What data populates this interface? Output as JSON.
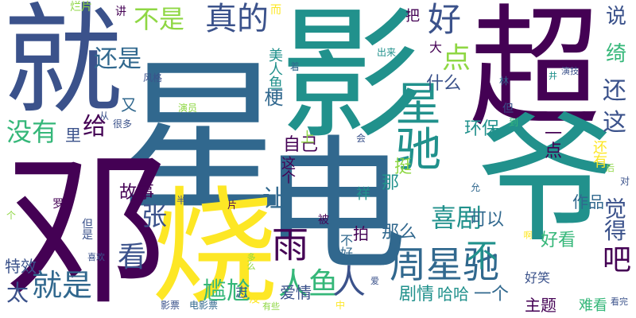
{
  "palette": {
    "dark_purple": "#440154",
    "indigo": "#3b528b",
    "blue": "#31688e",
    "teal": "#21918c",
    "green": "#35b779",
    "light_green": "#8fd744",
    "yellow": "#fde725"
  },
  "words": [
    {
      "text": "星",
      "color": "#31688e"
    },
    {
      "text": "邓",
      "color": "#440154"
    },
    {
      "text": "就",
      "color": "#3b528b"
    },
    {
      "text": "影",
      "color": "#21918c"
    },
    {
      "text": "超",
      "color": "#440154"
    },
    {
      "text": "爷",
      "color": "#21918c"
    },
    {
      "text": "电",
      "color": "#31688e"
    },
    {
      "text": "烧",
      "color": "#fde725"
    },
    {
      "text": "星驰",
      "color": "#21918c"
    },
    {
      "text": "周星驰",
      "color": "#31688e"
    },
    {
      "text": "雨",
      "color": "#440154"
    },
    {
      "text": "真的",
      "color": "#3b528b"
    },
    {
      "text": "好",
      "color": "#3b528b"
    },
    {
      "text": "不是",
      "color": "#8fd744"
    },
    {
      "text": "还是",
      "color": "#31688e"
    },
    {
      "text": "点",
      "color": "#8fd744"
    },
    {
      "text": "就是",
      "color": "#31688e"
    },
    {
      "text": "喜剧",
      "color": "#21918c"
    },
    {
      "text": "人鱼",
      "color": "#35b779"
    },
    {
      "text": "不",
      "color": "#21918c"
    },
    {
      "text": "人",
      "color": "#3b528b"
    },
    {
      "text": "吧",
      "color": "#440154"
    },
    {
      "text": "看",
      "color": "#3b528b"
    },
    {
      "text": "没有",
      "color": "#35b779"
    },
    {
      "text": "给",
      "color": "#440154"
    },
    {
      "text": "张",
      "color": "#3b528b"
    },
    {
      "text": "尴尬",
      "color": "#35b779"
    },
    {
      "text": "太",
      "color": "#3b528b"
    },
    {
      "text": "让",
      "color": "#31688e"
    },
    {
      "text": "还",
      "color": "#3b528b"
    },
    {
      "text": "这",
      "color": "#3b528b"
    },
    {
      "text": "说",
      "color": "#3b528b"
    },
    {
      "text": "绮",
      "color": "#35b779"
    },
    {
      "text": "觉得",
      "color": "#3b528b"
    },
    {
      "text": "可以",
      "color": "#31688e"
    },
    {
      "text": "那么",
      "color": "#31688e"
    },
    {
      "text": "自己",
      "color": "#440154"
    },
    {
      "text": "故事",
      "color": "#440154"
    },
    {
      "text": "什么",
      "color": "#3b528b"
    },
    {
      "text": "环保",
      "color": "#21918c"
    },
    {
      "text": "好看",
      "color": "#35b779"
    },
    {
      "text": "作品",
      "color": "#31688e"
    },
    {
      "text": "剧情",
      "color": "#21918c"
    },
    {
      "text": "一个",
      "color": "#31688e"
    },
    {
      "text": "哈哈",
      "color": "#21918c"
    },
    {
      "text": "主题",
      "color": "#440154"
    },
    {
      "text": "爱情",
      "color": "#3b528b"
    },
    {
      "text": "梗",
      "color": "#31688e"
    },
    {
      "text": "美人鱼",
      "color": "#21918c"
    },
    {
      "text": "特效",
      "color": "#3b528b"
    },
    {
      "text": "难看",
      "color": "#35b779"
    },
    {
      "text": "好笑",
      "color": "#3b528b"
    },
    {
      "text": "挺",
      "color": "#8fd744"
    },
    {
      "text": "那",
      "color": "#21918c"
    },
    {
      "text": "祥",
      "color": "#21918c"
    },
    {
      "text": "拍",
      "color": "#440154"
    },
    {
      "text": "不好",
      "color": "#31688e"
    },
    {
      "text": "被",
      "color": "#440154"
    },
    {
      "text": "一点",
      "color": "#440154"
    },
    {
      "text": "还有",
      "color": "#fde725"
    },
    {
      "text": "这个",
      "color": "#440154"
    },
    {
      "text": "上",
      "color": "#8fd744"
    },
    {
      "text": "里",
      "color": "#3b528b"
    },
    {
      "text": "又",
      "color": "#31688e"
    },
    {
      "text": "大",
      "color": "#440154"
    },
    {
      "text": "把",
      "color": "#440154"
    },
    {
      "text": "讲",
      "color": "#440154"
    },
    {
      "text": "烂片",
      "color": "#8fd744"
    },
    {
      "text": "而",
      "color": "#fde725"
    },
    {
      "text": "着",
      "color": "#31688e"
    },
    {
      "text": "出来",
      "color": "#21918c"
    },
    {
      "text": "风格",
      "color": "#3b528b"
    },
    {
      "text": "从",
      "color": "#3b528b"
    },
    {
      "text": "很多",
      "color": "#3b528b"
    },
    {
      "text": "演员",
      "color": "#8fd744"
    },
    {
      "text": "林",
      "color": "#31688e"
    },
    {
      "text": "演技",
      "color": "#3b528b"
    },
    {
      "text": "井",
      "color": "#21918c"
    },
    {
      "text": "但",
      "color": "#3b528b"
    },
    {
      "text": "到",
      "color": "#35b779"
    },
    {
      "text": "会",
      "color": "#3b528b"
    },
    {
      "text": "允",
      "color": "#31688e"
    },
    {
      "text": "后",
      "color": "#8fd744"
    },
    {
      "text": "对",
      "color": "#3b528b"
    },
    {
      "text": "罗",
      "color": "#440154"
    },
    {
      "text": "个",
      "color": "#8fd744"
    },
    {
      "text": "但是",
      "color": "#3b528b"
    },
    {
      "text": "半",
      "color": "#3b528b"
    },
    {
      "text": "片",
      "color": "#440154"
    },
    {
      "text": "喜欢",
      "color": "#3b528b"
    },
    {
      "text": "多么",
      "color": "#8fd744"
    },
    {
      "text": "志",
      "color": "#3b528b"
    },
    {
      "text": "爱",
      "color": "#3b528b"
    },
    {
      "text": "啊",
      "color": "#fde725"
    },
    {
      "text": "影票",
      "color": "#3b528b"
    },
    {
      "text": "电影票",
      "color": "#31688e"
    },
    {
      "text": "没",
      "color": "#fde725"
    },
    {
      "text": "有些",
      "color": "#8fd744"
    },
    {
      "text": "中",
      "color": "#fde725"
    },
    {
      "text": "看完",
      "color": "#3b528b"
    }
  ]
}
